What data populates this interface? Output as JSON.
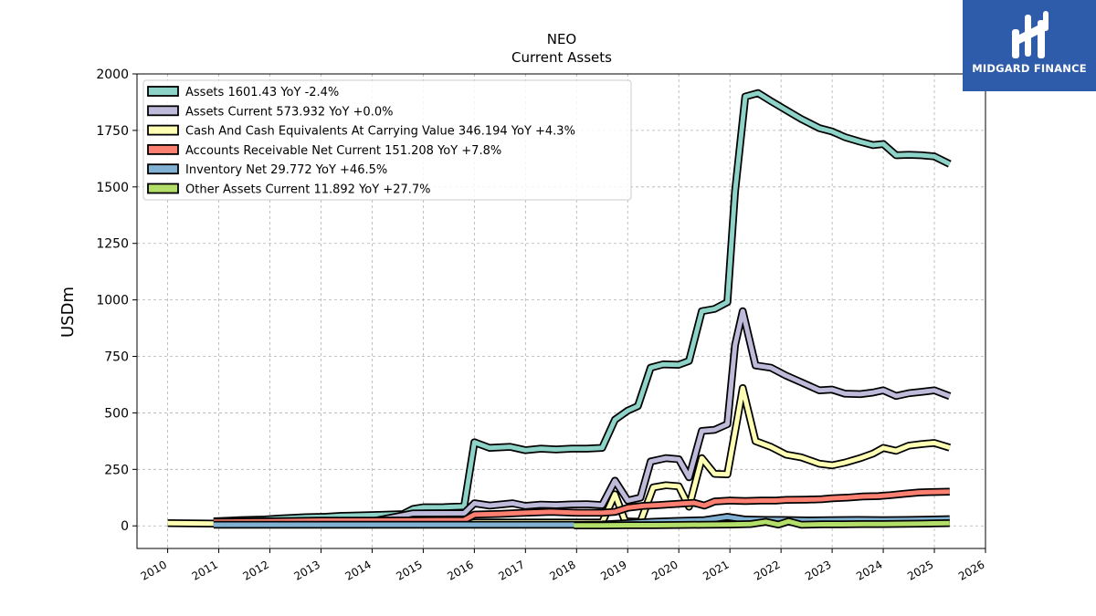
{
  "brand": {
    "name": "MIDGARD FINANCE"
  },
  "chart_data": {
    "type": "line",
    "title": "NEO",
    "subtitle": "Current  Assets",
    "xlabel": "",
    "ylabel": "USDm",
    "xlim": [
      2009.4,
      2026.0
    ],
    "ylim": [
      -100,
      2000
    ],
    "x_ticks": [
      "2010",
      "2011",
      "2012",
      "2013",
      "2014",
      "2015",
      "2016",
      "2017",
      "2018",
      "2019",
      "2020",
      "2021",
      "2022",
      "2023",
      "2024",
      "2025",
      "2026"
    ],
    "y_ticks": [
      "0",
      "250",
      "500",
      "750",
      "1000",
      "1250",
      "1500",
      "1750",
      "2000"
    ],
    "grid": true,
    "legend_position": "top-left",
    "series": [
      {
        "name": "Assets",
        "legend": "Assets  1601.43 YoY -2.4%",
        "color": "#8dd3c7",
        "points": [
          [
            2010.9,
            20
          ],
          [
            2011.4,
            25
          ],
          [
            2011.9,
            28
          ],
          [
            2012.2,
            33
          ],
          [
            2012.7,
            38
          ],
          [
            2013.1,
            40
          ],
          [
            2013.4,
            44
          ],
          [
            2013.8,
            46
          ],
          [
            2014.2,
            49
          ],
          [
            2014.6,
            52
          ],
          [
            2014.8,
            75
          ],
          [
            2015.0,
            82
          ],
          [
            2015.4,
            83
          ],
          [
            2015.8,
            86
          ],
          [
            2016.0,
            370
          ],
          [
            2016.3,
            345
          ],
          [
            2016.7,
            350
          ],
          [
            2017.0,
            335
          ],
          [
            2017.3,
            342
          ],
          [
            2017.6,
            338
          ],
          [
            2017.9,
            342
          ],
          [
            2018.2,
            342
          ],
          [
            2018.5,
            345
          ],
          [
            2018.75,
            470
          ],
          [
            2019.0,
            510
          ],
          [
            2019.2,
            530
          ],
          [
            2019.45,
            700
          ],
          [
            2019.7,
            715
          ],
          [
            2020.0,
            713
          ],
          [
            2020.2,
            730
          ],
          [
            2020.45,
            950
          ],
          [
            2020.7,
            960
          ],
          [
            2020.95,
            990
          ],
          [
            2021.1,
            1480
          ],
          [
            2021.3,
            1900
          ],
          [
            2021.55,
            1915
          ],
          [
            2021.8,
            1880
          ],
          [
            2022.1,
            1840
          ],
          [
            2022.4,
            1800
          ],
          [
            2022.75,
            1760
          ],
          [
            2023.0,
            1745
          ],
          [
            2023.25,
            1720
          ],
          [
            2023.55,
            1700
          ],
          [
            2023.8,
            1685
          ],
          [
            2024.0,
            1690
          ],
          [
            2024.25,
            1640
          ],
          [
            2024.5,
            1642
          ],
          [
            2024.75,
            1640
          ],
          [
            2025.0,
            1635
          ],
          [
            2025.3,
            1601.43
          ]
        ]
      },
      {
        "name": "Assets Current",
        "legend": "Assets Current  573.932 YoY +0.0%",
        "color": "#bebada",
        "points": [
          [
            2010.9,
            15
          ],
          [
            2012.0,
            16
          ],
          [
            2013.0,
            18
          ],
          [
            2014.0,
            20
          ],
          [
            2014.8,
            55
          ],
          [
            2015.8,
            56
          ],
          [
            2016.0,
            100
          ],
          [
            2016.3,
            90
          ],
          [
            2016.75,
            100
          ],
          [
            2017.0,
            88
          ],
          [
            2017.3,
            94
          ],
          [
            2017.6,
            92
          ],
          [
            2017.9,
            95
          ],
          [
            2018.2,
            96
          ],
          [
            2018.5,
            92
          ],
          [
            2018.75,
            200
          ],
          [
            2019.0,
            112
          ],
          [
            2019.25,
            125
          ],
          [
            2019.45,
            285
          ],
          [
            2019.75,
            300
          ],
          [
            2020.0,
            295
          ],
          [
            2020.2,
            215
          ],
          [
            2020.45,
            420
          ],
          [
            2020.7,
            425
          ],
          [
            2020.95,
            450
          ],
          [
            2021.1,
            800
          ],
          [
            2021.25,
            950
          ],
          [
            2021.5,
            710
          ],
          [
            2021.8,
            700
          ],
          [
            2022.1,
            665
          ],
          [
            2022.4,
            635
          ],
          [
            2022.75,
            600
          ],
          [
            2023.0,
            603
          ],
          [
            2023.25,
            585
          ],
          [
            2023.55,
            583
          ],
          [
            2023.8,
            590
          ],
          [
            2024.0,
            600
          ],
          [
            2024.25,
            575
          ],
          [
            2024.5,
            587
          ],
          [
            2024.75,
            593
          ],
          [
            2025.0,
            600
          ],
          [
            2025.3,
            573.932
          ]
        ]
      },
      {
        "name": "Cash And Cash Equivalents At Carrying Value",
        "legend": "Cash And Cash Equivalents At Carrying Value  346.194 YoY +4.3%",
        "color": "#ffffb3",
        "points": [
          [
            2010.0,
            12
          ],
          [
            2010.9,
            10
          ],
          [
            2012.0,
            10
          ],
          [
            2013.0,
            10
          ],
          [
            2014.0,
            10
          ],
          [
            2015.0,
            10
          ],
          [
            2015.8,
            10
          ],
          [
            2016.0,
            15
          ],
          [
            2017.0,
            15
          ],
          [
            2018.0,
            15
          ],
          [
            2018.5,
            15
          ],
          [
            2018.75,
            140
          ],
          [
            2018.95,
            20
          ],
          [
            2019.25,
            18
          ],
          [
            2019.5,
            170
          ],
          [
            2019.75,
            180
          ],
          [
            2020.0,
            175
          ],
          [
            2020.2,
            85
          ],
          [
            2020.45,
            300
          ],
          [
            2020.7,
            230
          ],
          [
            2020.95,
            228
          ],
          [
            2021.15,
            480
          ],
          [
            2021.25,
            610
          ],
          [
            2021.5,
            375
          ],
          [
            2021.8,
            350
          ],
          [
            2022.1,
            315
          ],
          [
            2022.4,
            303
          ],
          [
            2022.75,
            275
          ],
          [
            2023.0,
            268
          ],
          [
            2023.25,
            280
          ],
          [
            2023.55,
            300
          ],
          [
            2023.8,
            320
          ],
          [
            2024.0,
            345
          ],
          [
            2024.25,
            332
          ],
          [
            2024.5,
            355
          ],
          [
            2024.75,
            362
          ],
          [
            2025.0,
            367
          ],
          [
            2025.3,
            346.194
          ]
        ]
      },
      {
        "name": "Accounts Receivable Net Current",
        "legend": "Accounts Receivable Net Current  151.208 YoY +7.8%",
        "color": "#fb8072",
        "points": [
          [
            2010.9,
            18
          ],
          [
            2012.0,
            20
          ],
          [
            2013.0,
            23
          ],
          [
            2014.0,
            23
          ],
          [
            2015.0,
            24
          ],
          [
            2015.8,
            25
          ],
          [
            2016.0,
            50
          ],
          [
            2016.5,
            53
          ],
          [
            2017.0,
            58
          ],
          [
            2017.5,
            62
          ],
          [
            2018.0,
            58
          ],
          [
            2018.5,
            58
          ],
          [
            2018.75,
            62
          ],
          [
            2019.0,
            80
          ],
          [
            2019.3,
            88
          ],
          [
            2019.6,
            92
          ],
          [
            2020.0,
            98
          ],
          [
            2020.3,
            102
          ],
          [
            2020.5,
            90
          ],
          [
            2020.7,
            108
          ],
          [
            2021.0,
            112
          ],
          [
            2021.3,
            110
          ],
          [
            2021.6,
            112
          ],
          [
            2021.9,
            112
          ],
          [
            2022.1,
            115
          ],
          [
            2022.5,
            116
          ],
          [
            2022.8,
            118
          ],
          [
            2023.0,
            122
          ],
          [
            2023.3,
            125
          ],
          [
            2023.6,
            130
          ],
          [
            2023.9,
            132
          ],
          [
            2024.1,
            135
          ],
          [
            2024.4,
            142
          ],
          [
            2024.7,
            148
          ],
          [
            2025.0,
            150
          ],
          [
            2025.3,
            151.208
          ]
        ]
      },
      {
        "name": "Inventory Net",
        "legend": "Inventory Net  29.772 YoY +46.5%",
        "color": "#80b1d3",
        "points": [
          [
            2010.9,
            5
          ],
          [
            2012.0,
            5
          ],
          [
            2013.0,
            5
          ],
          [
            2014.0,
            5
          ],
          [
            2015.0,
            5
          ],
          [
            2016.0,
            5
          ],
          [
            2017.0,
            5
          ],
          [
            2017.9,
            5
          ],
          [
            2018.5,
            6
          ],
          [
            2019.0,
            12
          ],
          [
            2019.5,
            18
          ],
          [
            2020.0,
            22
          ],
          [
            2020.5,
            25
          ],
          [
            2020.95,
            40
          ],
          [
            2021.3,
            28
          ],
          [
            2021.7,
            26
          ],
          [
            2022.0,
            26
          ],
          [
            2022.5,
            24
          ],
          [
            2023.0,
            25
          ],
          [
            2023.5,
            26
          ],
          [
            2024.0,
            25
          ],
          [
            2024.5,
            26
          ],
          [
            2025.0,
            28
          ],
          [
            2025.3,
            29.772
          ]
        ]
      },
      {
        "name": "Other Assets Current",
        "legend": "Other Assets Current  11.892 YoY +27.7%",
        "color": "#b3de69",
        "points": [
          [
            2017.95,
            2
          ],
          [
            2018.5,
            2
          ],
          [
            2019.0,
            3
          ],
          [
            2019.5,
            3
          ],
          [
            2020.0,
            4
          ],
          [
            2020.5,
            5
          ],
          [
            2021.0,
            6
          ],
          [
            2021.4,
            8
          ],
          [
            2021.7,
            18
          ],
          [
            2021.95,
            6
          ],
          [
            2022.15,
            20
          ],
          [
            2022.4,
            5
          ],
          [
            2022.8,
            7
          ],
          [
            2023.2,
            7
          ],
          [
            2023.6,
            8
          ],
          [
            2024.0,
            8
          ],
          [
            2024.4,
            9
          ],
          [
            2024.8,
            10
          ],
          [
            2025.0,
            11
          ],
          [
            2025.3,
            11.892
          ]
        ]
      }
    ]
  }
}
